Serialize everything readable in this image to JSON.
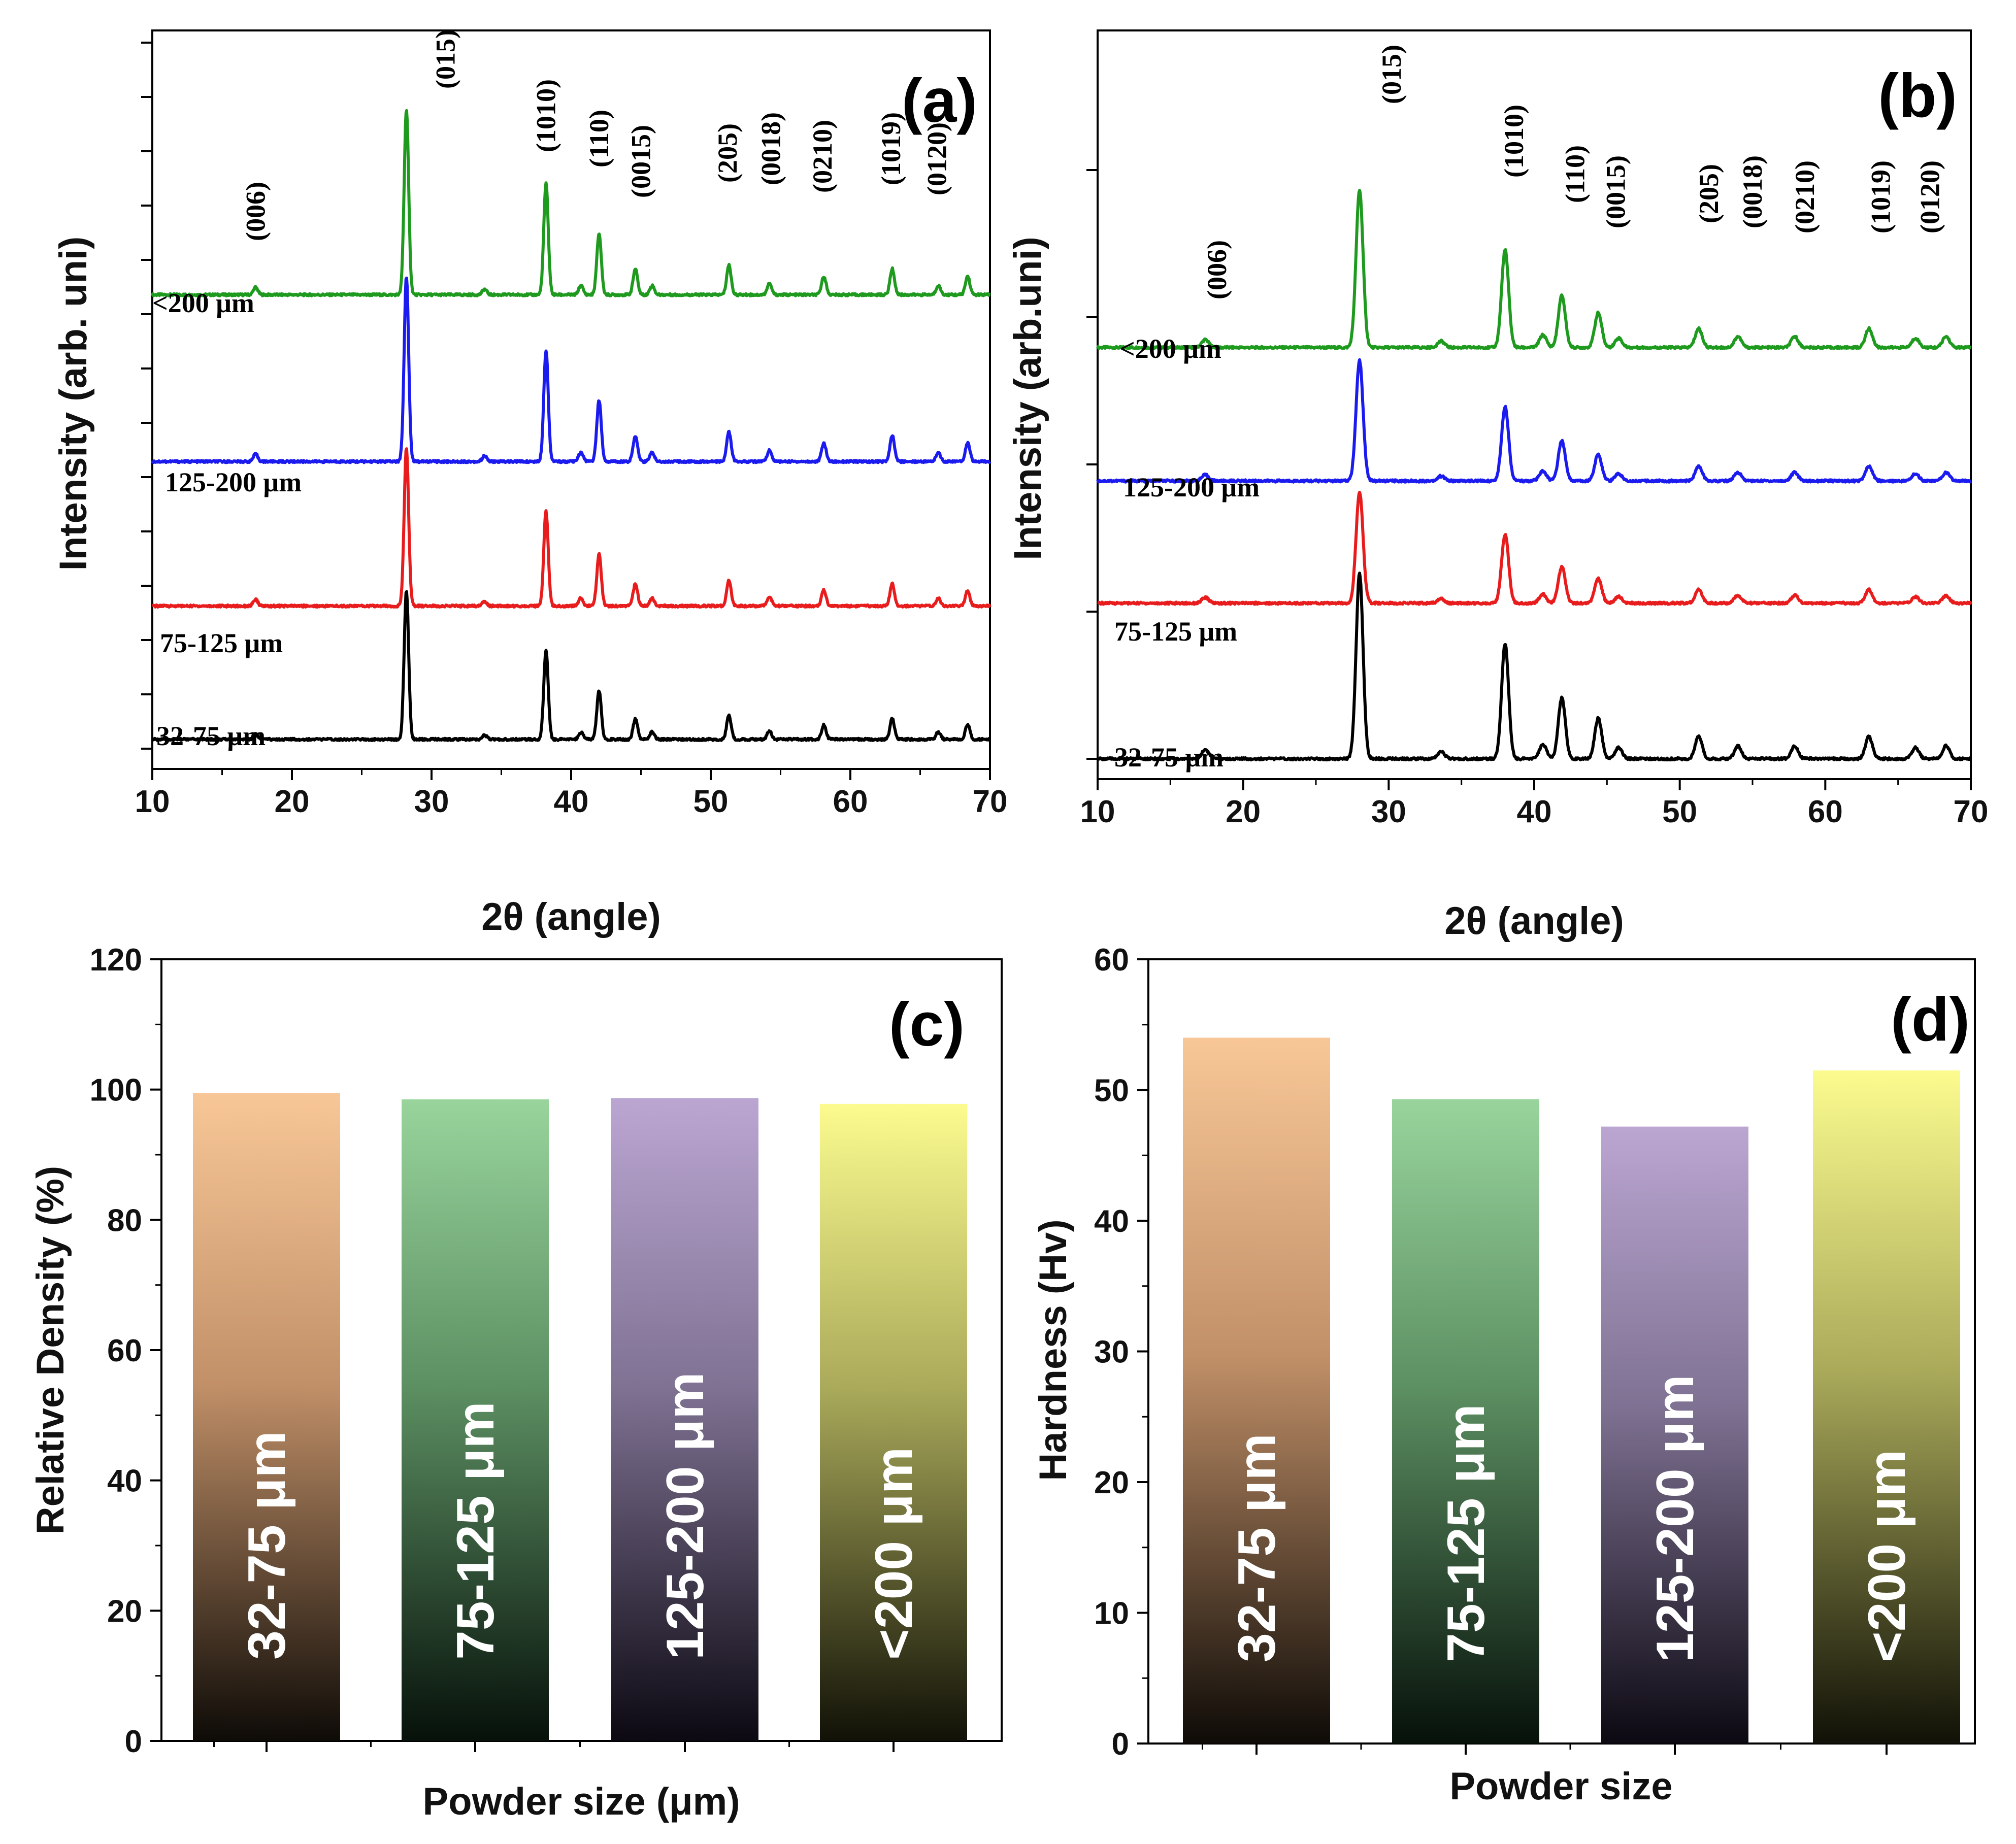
{
  "colors": {
    "green_trace": "#1e9a1e",
    "blue_trace": "#1b1bf0",
    "red_trace": "#e81c1c",
    "black_trace": "#000000",
    "bar_orange": "#f8c797",
    "bar_green": "#98d49c",
    "bar_purple": "#bba6d2",
    "bar_yellow": "#fbfb8f"
  },
  "chart_data": [
    {
      "panel": "a",
      "type": "line",
      "panel_label": "(a)",
      "xlabel": "2θ (angle)",
      "ylabel": "Intensity (arb. uni)",
      "xlim": [
        10,
        70
      ],
      "xticks": [
        "10",
        "20",
        "30",
        "40",
        "50",
        "60",
        "70"
      ],
      "miller_indices": [
        {
          "label": "(006)",
          "x": 17.4
        },
        {
          "label": "(015)",
          "x": 31.0
        },
        {
          "label": "(1010)",
          "x": 38.2
        },
        {
          "label": "(110)",
          "x": 42.0
        },
        {
          "label": "(0015)",
          "x": 45.0
        },
        {
          "label": "(205)",
          "x": 51.2
        },
        {
          "label": "(0018)",
          "x": 54.3
        },
        {
          "label": "(0210)",
          "x": 58.0
        },
        {
          "label": "(1019)",
          "x": 62.9
        },
        {
          "label": "(0120)",
          "x": 66.2
        }
      ],
      "series": [
        {
          "name": "<200 μm",
          "color": "#1e9a1e",
          "baseline": 2.45,
          "scale": 1.0
        },
        {
          "name": "125-200 μm",
          "color": "#1b1bf0",
          "baseline": 1.55,
          "scale": 1.0
        },
        {
          "name": "75-125 μm",
          "color": "#e81c1c",
          "baseline": 0.77,
          "scale": 0.85
        },
        {
          "name": "32-75 μm",
          "color": "#000000",
          "baseline": 0.05,
          "scale": 0.8
        }
      ],
      "peaks": [
        {
          "x": 17.4,
          "h": 0.04
        },
        {
          "x": 28.2,
          "h": 1.0
        },
        {
          "x": 33.8,
          "h": 0.03
        },
        {
          "x": 38.2,
          "h": 0.6
        },
        {
          "x": 40.7,
          "h": 0.05
        },
        {
          "x": 42.0,
          "h": 0.33
        },
        {
          "x": 44.6,
          "h": 0.14
        },
        {
          "x": 45.8,
          "h": 0.05
        },
        {
          "x": 51.3,
          "h": 0.16
        },
        {
          "x": 54.2,
          "h": 0.06
        },
        {
          "x": 58.1,
          "h": 0.1
        },
        {
          "x": 63.0,
          "h": 0.14
        },
        {
          "x": 66.3,
          "h": 0.05
        },
        {
          "x": 68.4,
          "h": 0.1
        }
      ]
    },
    {
      "panel": "b",
      "type": "line",
      "panel_label": "(b)",
      "xlabel": "2θ (angle)",
      "ylabel": "Intensity (arb.uni)",
      "xlim": [
        10,
        70
      ],
      "xticks": [
        "10",
        "20",
        "30",
        "40",
        "50",
        "60",
        "70"
      ],
      "miller_indices": [
        {
          "label": "(006)",
          "x": 18.2
        },
        {
          "label": "(015)",
          "x": 30.2
        },
        {
          "label": "(1010)",
          "x": 38.6
        },
        {
          "label": "(110)",
          "x": 42.8
        },
        {
          "label": "(0015)",
          "x": 45.6
        },
        {
          "label": "(205)",
          "x": 52.0
        },
        {
          "label": "(0018)",
          "x": 55.0
        },
        {
          "label": "(0210)",
          "x": 58.6
        },
        {
          "label": "(1019)",
          "x": 63.8
        },
        {
          "label": "(0120)",
          "x": 67.2
        }
      ],
      "series": [
        {
          "name": "<200 μm",
          "color": "#1e9a1e",
          "baseline": 2.22,
          "scale": 0.85
        },
        {
          "name": "125-200 μm",
          "color": "#1b1bf0",
          "baseline": 1.5,
          "scale": 0.65
        },
        {
          "name": "75-125 μm",
          "color": "#e81c1c",
          "baseline": 0.84,
          "scale": 0.6
        },
        {
          "name": "32-75 μm",
          "color": "#000000",
          "baseline": 0.0,
          "scale": 1.0
        }
      ],
      "peaks": [
        {
          "x": 17.4,
          "h": 0.05
        },
        {
          "x": 28.0,
          "h": 1.0
        },
        {
          "x": 33.6,
          "h": 0.04
        },
        {
          "x": 38.0,
          "h": 0.62
        },
        {
          "x": 40.6,
          "h": 0.08
        },
        {
          "x": 41.9,
          "h": 0.33
        },
        {
          "x": 44.4,
          "h": 0.22
        },
        {
          "x": 45.8,
          "h": 0.06
        },
        {
          "x": 51.3,
          "h": 0.12
        },
        {
          "x": 54.0,
          "h": 0.07
        },
        {
          "x": 57.9,
          "h": 0.07
        },
        {
          "x": 63.0,
          "h": 0.12
        },
        {
          "x": 66.2,
          "h": 0.06
        },
        {
          "x": 68.3,
          "h": 0.07
        }
      ]
    },
    {
      "panel": "c",
      "type": "bar",
      "panel_label": "(c)",
      "xlabel": "Powder size (μm)",
      "ylabel": "Relative Density (%)",
      "ylim": [
        0,
        120
      ],
      "yticks": [
        "0",
        "20",
        "40",
        "60",
        "80",
        "100",
        "120"
      ],
      "categories": [
        "32-75 μm",
        "75-125 μm",
        "125-200 μm",
        "<200 μm"
      ],
      "values": [
        99.5,
        98.5,
        98.7,
        97.8
      ]
    },
    {
      "panel": "d",
      "type": "bar",
      "panel_label": "(d)",
      "xlabel": "Powder size",
      "ylabel": "Hardness (Hv)",
      "ylim": [
        0,
        60
      ],
      "yticks": [
        "0",
        "10",
        "20",
        "30",
        "40",
        "50",
        "60"
      ],
      "categories": [
        "32-75 μm",
        "75-125 μm",
        "125-200 μm",
        "<200 μm"
      ],
      "values": [
        54.0,
        49.3,
        47.2,
        51.5
      ]
    }
  ]
}
